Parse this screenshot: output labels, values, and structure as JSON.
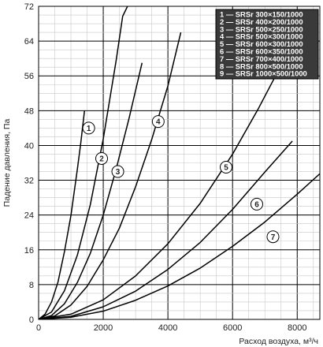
{
  "chart_data": {
    "type": "line",
    "title": "",
    "xlabel": "Расход воздуха, м³/ч",
    "ylabel": "Падение давления, Па",
    "xlim": [
      0,
      8700
    ],
    "ylim": [
      0,
      72
    ],
    "x_ticks": [
      "0",
      "2000",
      "4000",
      "6000",
      "8000"
    ],
    "y_ticks": [
      "0",
      "8",
      "16",
      "24",
      "32",
      "40",
      "48",
      "56",
      "64",
      "72"
    ],
    "grid": true,
    "legend_position": "top-right",
    "legend": [
      {
        "id": "1",
        "label": "SRSr 300×150/1000"
      },
      {
        "id": "2",
        "label": "SRSr 400×200/1000"
      },
      {
        "id": "3",
        "label": "SRSr 500×250/1000"
      },
      {
        "id": "4",
        "label": "SRSr 500×300/1000"
      },
      {
        "id": "5",
        "label": "SRSr 600×300/1000"
      },
      {
        "id": "6",
        "label": "SRSr 600×350/1000"
      },
      {
        "id": "7",
        "label": "SRSr 700×400/1000"
      },
      {
        "id": "8",
        "label": "SRSr 800×500/1000"
      },
      {
        "id": "9",
        "label": "SRSr 1000×500/1000"
      }
    ],
    "series": [
      {
        "id": "1",
        "x": [
          0,
          200,
          400,
          600,
          800,
          1000,
          1200,
          1300,
          1420
        ],
        "y": [
          0,
          1.2,
          4.0,
          8.6,
          15.6,
          23.9,
          34.6,
          40.3,
          48.0
        ]
      },
      {
        "id": "2",
        "x": [
          0,
          400,
          800,
          1200,
          1600,
          2000,
          2400,
          2600,
          2750
        ],
        "y": [
          0,
          1.7,
          6.6,
          14.8,
          26.4,
          41.5,
          59.6,
          69.7,
          72
        ]
      },
      {
        "id": "3",
        "x": [
          0,
          400,
          800,
          1200,
          1600,
          2000,
          2400,
          2800,
          3200
        ],
        "y": [
          0,
          0.9,
          3.6,
          8.5,
          15.2,
          24.0,
          34.6,
          46.3,
          59.0
        ]
      },
      {
        "id": "4",
        "x": [
          0,
          500,
          1000,
          1500,
          2000,
          2500,
          3000,
          3500,
          4000,
          4400
        ],
        "y": [
          0,
          0.8,
          3.3,
          7.6,
          13.7,
          21.0,
          30.5,
          41.4,
          53.7,
          66.0
        ]
      },
      {
        "id": "5",
        "x": [
          0,
          1000,
          2000,
          3000,
          4000,
          5000,
          6000,
          6800,
          7400
        ],
        "y": [
          0,
          1.2,
          4.5,
          10.0,
          17.4,
          26.7,
          38.0,
          48.5,
          57.0
        ]
      },
      {
        "id": "6",
        "x": [
          0,
          1000,
          2000,
          3000,
          4000,
          5000,
          6000,
          7000,
          7850
        ],
        "y": [
          0,
          0.7,
          2.9,
          6.5,
          11.5,
          17.7,
          25.3,
          33.9,
          41.0
        ]
      },
      {
        "id": "7",
        "x": [
          0,
          1000,
          2000,
          3000,
          4000,
          5000,
          6000,
          7000,
          8000,
          8700
        ],
        "y": [
          0,
          0.5,
          1.9,
          4.4,
          7.7,
          11.8,
          16.8,
          22.4,
          28.8,
          33.5
        ]
      }
    ],
    "curve_labels": [
      {
        "id": "1",
        "x": 1550,
        "y": 44
      },
      {
        "id": "2",
        "x": 1950,
        "y": 37
      },
      {
        "id": "3",
        "x": 2450,
        "y": 34
      },
      {
        "id": "4",
        "x": 3700,
        "y": 45.5
      },
      {
        "id": "5",
        "x": 5800,
        "y": 35
      },
      {
        "id": "6",
        "x": 6750,
        "y": 26.5
      },
      {
        "id": "7",
        "x": 7250,
        "y": 19
      }
    ]
  }
}
